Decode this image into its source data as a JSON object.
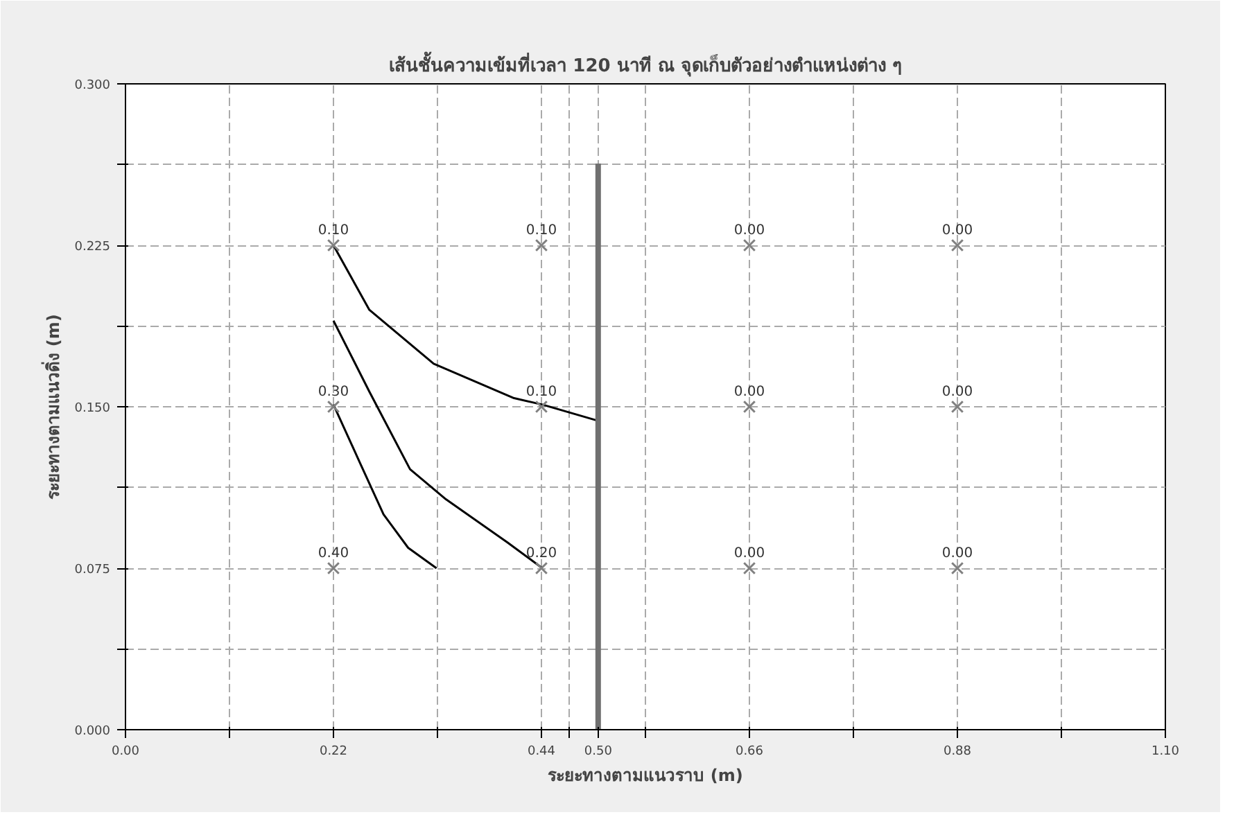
{
  "chart_data": {
    "type": "scatter",
    "title": "เส้นชั้นความเข้มที่เวลา 120 นาที ณ จุดเก็บตัวอย่างตำแหน่งต่าง ๆ",
    "xlabel": "ระยะทางตามแนวราบ (m)",
    "ylabel": "ระยะทางตามแนวดิ่ง (m)",
    "xlim": [
      0,
      1.1
    ],
    "ylim": [
      0,
      0.3
    ],
    "xticks": [
      {
        "value": 0,
        "label": "0.00"
      },
      {
        "value": 0.11,
        "label": null
      },
      {
        "value": 0.22,
        "label": "0.22"
      },
      {
        "value": 0.33,
        "label": null
      },
      {
        "value": 0.44,
        "label": "0.44"
      },
      {
        "value": 0.47,
        "label": null
      },
      {
        "value": 0.5,
        "label": "0.50"
      },
      {
        "value": 0.55,
        "label": null
      },
      {
        "value": 0.66,
        "label": "0.66"
      },
      {
        "value": 0.77,
        "label": null
      },
      {
        "value": 0.88,
        "label": "0.88"
      },
      {
        "value": 0.99,
        "label": null
      },
      {
        "value": 1.1,
        "label": "1.10"
      }
    ],
    "yticks": [
      {
        "value": 0,
        "label": "0.000"
      },
      {
        "value": 0.0375,
        "label": null
      },
      {
        "value": 0.075,
        "label": "0.075"
      },
      {
        "value": 0.1125,
        "label": null
      },
      {
        "value": 0.15,
        "label": "0.150"
      },
      {
        "value": 0.1875,
        "label": null
      },
      {
        "value": 0.225,
        "label": "0.225"
      },
      {
        "value": 0.2625,
        "label": null
      },
      {
        "value": 0.3,
        "label": "0.300"
      }
    ],
    "grid": true,
    "annotations": [
      {
        "text": "0.10",
        "x": 0.22,
        "y": 0.225
      },
      {
        "text": "0.30",
        "x": 0.22,
        "y": 0.15
      },
      {
        "text": "0.40",
        "x": 0.22,
        "y": 0.075
      },
      {
        "text": "0.10",
        "x": 0.44,
        "y": 0.225
      },
      {
        "text": "0.10",
        "x": 0.44,
        "y": 0.15
      },
      {
        "text": "0.20",
        "x": 0.44,
        "y": 0.075
      },
      {
        "text": "0.00",
        "x": 0.66,
        "y": 0.225
      },
      {
        "text": "0.00",
        "x": 0.66,
        "y": 0.15
      },
      {
        "text": "0.00",
        "x": 0.66,
        "y": 0.075
      },
      {
        "text": "0.00",
        "x": 0.88,
        "y": 0.225
      },
      {
        "text": "0.00",
        "x": 0.88,
        "y": 0.15
      },
      {
        "text": "0.00",
        "x": 0.88,
        "y": 0.075
      }
    ],
    "series": [
      {
        "marker": "cross",
        "color": "#808080",
        "x": [
          0.22,
          0.22,
          0.22,
          0.44,
          0.44,
          0.44,
          0.66,
          0.66,
          0.66,
          0.88,
          0.88,
          0.88
        ],
        "values": [
          0.225,
          0.15,
          0.075,
          0.225,
          0.15,
          0.075,
          0.225,
          0.15,
          0.075,
          0.225,
          0.15,
          0.075
        ]
      },
      {
        "type": "line",
        "color": "#000000",
        "x": [
          0.22,
          0.258,
          0.326,
          0.411,
          0.441,
          0.499
        ],
        "values": [
          0.225,
          0.195,
          0.17,
          0.154,
          0.151,
          0.1436
        ]
      },
      {
        "type": "line",
        "color": "#000000",
        "x": [
          0.22,
          0.258,
          0.301,
          0.339,
          0.404,
          0.441
        ],
        "values": [
          0.19,
          0.157,
          0.121,
          0.107,
          0.087,
          0.075
        ]
      },
      {
        "type": "line",
        "color": "#000000",
        "x": [
          0.22,
          0.248,
          0.273,
          0.299,
          0.329
        ],
        "values": [
          0.151,
          0.124,
          0.1,
          0.0845,
          0.075
        ]
      },
      {
        "type": "line",
        "color": "#707070",
        "x": [
          0.5,
          0.5
        ],
        "values": [
          0,
          0.263
        ]
      }
    ]
  }
}
